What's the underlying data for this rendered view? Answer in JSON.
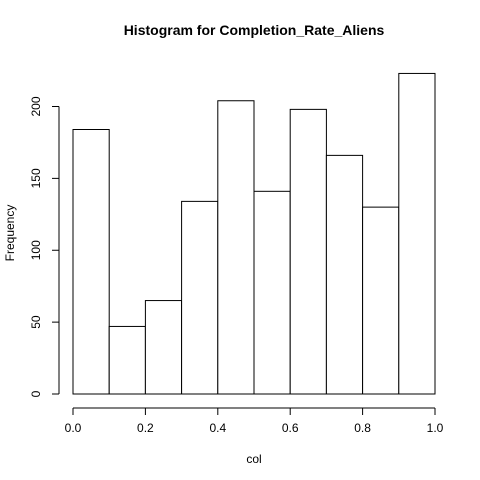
{
  "chart_data": {
    "type": "bar",
    "title": "Histogram for  Completion_Rate_Aliens",
    "xlabel": "col",
    "ylabel": "Frequency",
    "bins": [
      {
        "x0": 0.0,
        "x1": 0.1,
        "count": 184
      },
      {
        "x0": 0.1,
        "x1": 0.2,
        "count": 47
      },
      {
        "x0": 0.2,
        "x1": 0.3,
        "count": 65
      },
      {
        "x0": 0.3,
        "x1": 0.4,
        "count": 134
      },
      {
        "x0": 0.4,
        "x1": 0.5,
        "count": 204
      },
      {
        "x0": 0.5,
        "x1": 0.6,
        "count": 141
      },
      {
        "x0": 0.6,
        "x1": 0.7,
        "count": 198
      },
      {
        "x0": 0.7,
        "x1": 0.8,
        "count": 166
      },
      {
        "x0": 0.8,
        "x1": 0.9,
        "count": 130
      },
      {
        "x0": 0.9,
        "x1": 1.0,
        "count": 223
      }
    ],
    "xlim": [
      0,
      1
    ],
    "ylim": [
      0,
      224
    ],
    "xticks": [
      0.0,
      0.2,
      0.4,
      0.6,
      0.8,
      1.0
    ],
    "xtick_labels": [
      "0.0",
      "0.2",
      "0.4",
      "0.6",
      "0.8",
      "1.0"
    ],
    "yticks": [
      0,
      50,
      100,
      150,
      200
    ],
    "ytick_labels": [
      "0",
      "50",
      "100",
      "150",
      "200"
    ],
    "grid": false,
    "bar_fill": "#ffffff",
    "bar_stroke": "#000000"
  }
}
